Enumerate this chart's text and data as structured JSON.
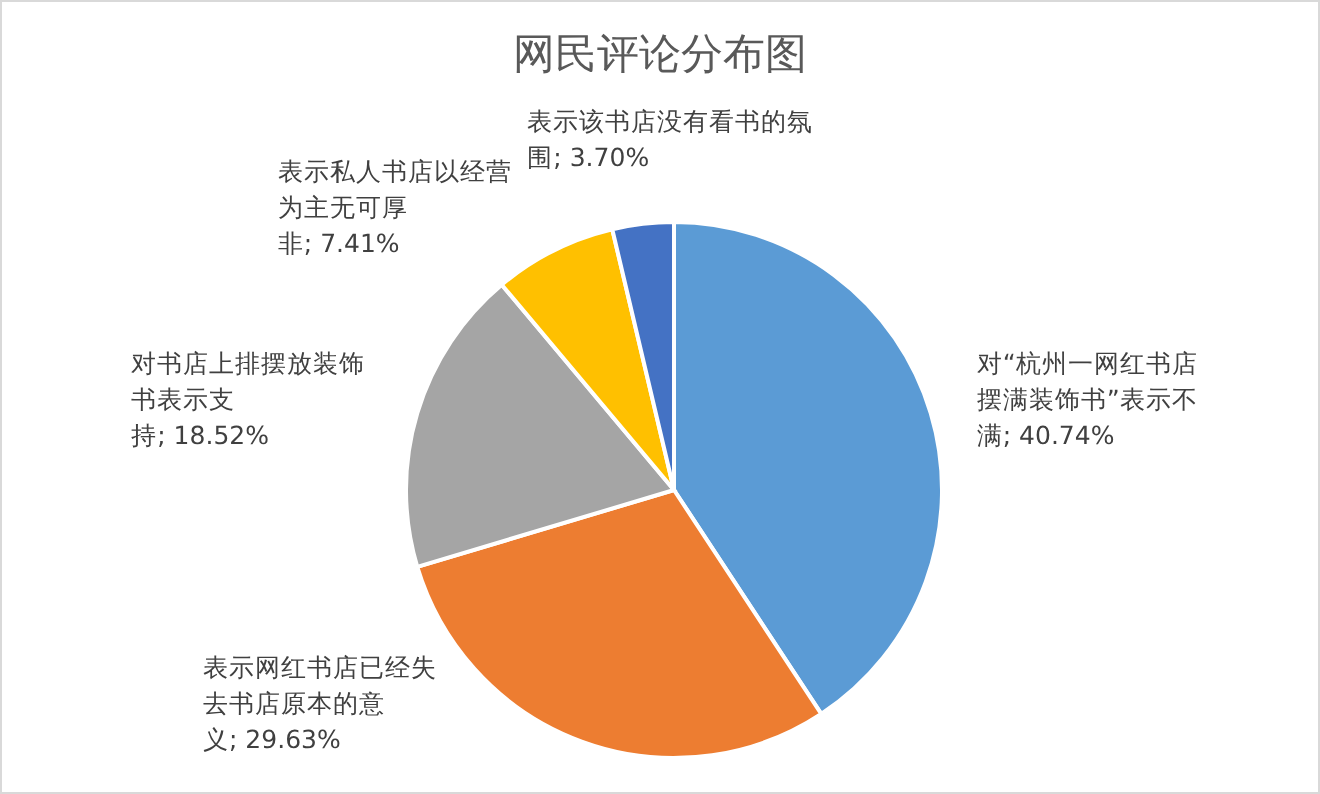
{
  "chart_data": {
    "type": "pie",
    "title": "网民评论分布图",
    "categories": [
      "对“杭州一网红书店摆满装饰书”表示不满",
      "表示网红书店已经失去书店原本的意义",
      "对书店上排摆放装饰书表示支持",
      "表示私人书店以经营为主无可厚非",
      "表示该书店没有看书的氛围"
    ],
    "values": [
      40.74,
      29.63,
      18.52,
      7.41,
      3.7
    ],
    "value_labels": [
      "40.74%",
      "29.63%",
      "18.52%",
      "7.41%",
      "3.70%"
    ],
    "colors": [
      "#5b9bd5",
      "#ed7d31",
      "#a5a5a5",
      "#ffc000",
      "#4472c4"
    ],
    "legend": false
  }
}
